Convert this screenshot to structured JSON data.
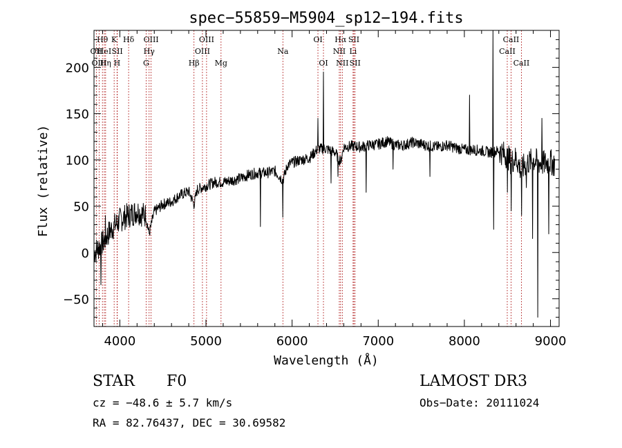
{
  "chart_data": {
    "type": "line",
    "title": "spec−55859−M5904_sp12−194.fits",
    "xlabel": "Wavelength (Å)",
    "ylabel": "Flux (relative)",
    "xlim": [
      3700,
      9100
    ],
    "ylim": [
      -80,
      240
    ],
    "x_ticks": [
      4000,
      5000,
      6000,
      7000,
      8000,
      9000
    ],
    "x_tick_labels": [
      "4000",
      "5000",
      "6000",
      "7000",
      "8000",
      "9000"
    ],
    "y_ticks": [
      -50,
      0,
      50,
      100,
      150,
      200
    ],
    "y_tick_labels": [
      "−50",
      "0",
      "50",
      "100",
      "150",
      "200"
    ],
    "series": [
      {
        "name": "flux",
        "color": "#000000",
        "x": [
          3700,
          3750,
          3800,
          3850,
          3900,
          3950,
          4000,
          4050,
          4100,
          4150,
          4200,
          4250,
          4300,
          4340,
          4400,
          4500,
          4600,
          4700,
          4800,
          4861,
          4900,
          5000,
          5100,
          5200,
          5300,
          5400,
          5500,
          5600,
          5700,
          5800,
          5893,
          5950,
          6000,
          6100,
          6200,
          6300,
          6400,
          6500,
          6563,
          6600,
          6700,
          6800,
          6900,
          7000,
          7100,
          7200,
          7300,
          7400,
          7500,
          7600,
          7700,
          7800,
          7900,
          8000,
          8100,
          8200,
          8300,
          8400,
          8500,
          8542,
          8600,
          8662,
          8700,
          8800,
          8900,
          9000,
          9050
        ],
        "y": [
          0,
          5,
          10,
          18,
          25,
          30,
          35,
          38,
          40,
          42,
          45,
          42,
          40,
          20,
          44,
          52,
          55,
          62,
          66,
          52,
          68,
          72,
          76,
          76,
          78,
          80,
          84,
          86,
          86,
          88,
          78,
          95,
          97,
          100,
          102,
          112,
          112,
          108,
          98,
          114,
          115,
          114,
          116,
          117,
          120,
          116,
          116,
          119,
          117,
          115,
          114,
          116,
          113,
          111,
          111,
          110,
          108,
          110,
          104,
          98,
          102,
          88,
          95,
          100,
          96,
          98,
          95
        ]
      }
    ],
    "spikes": [
      {
        "x": 3780,
        "y": -35
      },
      {
        "x": 3830,
        "y": 40
      },
      {
        "x": 5630,
        "y": 28
      },
      {
        "x": 5893,
        "y": 38
      },
      {
        "x": 6300,
        "y": 145
      },
      {
        "x": 6364,
        "y": 195
      },
      {
        "x": 6450,
        "y": 75
      },
      {
        "x": 6530,
        "y": 82
      },
      {
        "x": 6860,
        "y": 65
      },
      {
        "x": 7170,
        "y": 90
      },
      {
        "x": 7600,
        "y": 82
      },
      {
        "x": 8060,
        "y": 170
      },
      {
        "x": 8330,
        "y": 240
      },
      {
        "x": 8340,
        "y": 25
      },
      {
        "x": 8500,
        "y": 65
      },
      {
        "x": 8542,
        "y": 45
      },
      {
        "x": 8662,
        "y": 40
      },
      {
        "x": 8720,
        "y": 70
      },
      {
        "x": 8790,
        "y": 15
      },
      {
        "x": 8850,
        "y": -70
      },
      {
        "x": 8900,
        "y": 145
      },
      {
        "x": 8980,
        "y": 20
      }
    ],
    "lines": [
      {
        "label": "Hθ",
        "x": 3798,
        "row": 0
      },
      {
        "label": "OII",
        "x": 3727,
        "row": 1
      },
      {
        "label": "OIII",
        "x": 3760,
        "row": 2
      },
      {
        "label": "HeI",
        "x": 3820,
        "row": 1
      },
      {
        "label": "Hη",
        "x": 3835,
        "row": 2
      },
      {
        "label": "K",
        "x": 3934,
        "row": 0
      },
      {
        "label": "SII",
        "x": 3970,
        "row": 1
      },
      {
        "label": "H",
        "x": 3968,
        "row": 2
      },
      {
        "label": "Hδ",
        "x": 4102,
        "row": 0
      },
      {
        "label": "OIII",
        "x": 4363,
        "row": 0
      },
      {
        "label": "Hγ",
        "x": 4340,
        "row": 1
      },
      {
        "label": "G",
        "x": 4305,
        "row": 2
      },
      {
        "label": "Hβ",
        "x": 4861,
        "row": 2
      },
      {
        "label": "OIII",
        "x": 5007,
        "row": 0
      },
      {
        "label": "OIII",
        "x": 4959,
        "row": 1
      },
      {
        "label": "Mg",
        "x": 5175,
        "row": 2
      },
      {
        "label": "Na",
        "x": 5893,
        "row": 1
      },
      {
        "label": "OI",
        "x": 6300,
        "row": 0
      },
      {
        "label": "OI",
        "x": 6364,
        "row": 2
      },
      {
        "label": "Hα",
        "x": 6563,
        "row": 0
      },
      {
        "label": "NII",
        "x": 6548,
        "row": 1
      },
      {
        "label": "NII",
        "x": 6583,
        "row": 2
      },
      {
        "label": "SII",
        "x": 6717,
        "row": 0
      },
      {
        "label": "Li",
        "x": 6708,
        "row": 1
      },
      {
        "label": "SII",
        "x": 6731,
        "row": 2
      },
      {
        "label": "CaII",
        "x": 8542,
        "row": 0
      },
      {
        "label": "CaII",
        "x": 8498,
        "row": 1
      },
      {
        "label": "CaII",
        "x": 8662,
        "row": 2
      }
    ],
    "line_color": "#b22222"
  },
  "info": {
    "object_class": "STAR",
    "subclass": "F0",
    "survey": "LAMOST DR3",
    "cz": "cz = −48.6 ± 5.7 km/s",
    "obs_date": "Obs−Date: 20111024",
    "coords": "RA =  82.76437, DEC =  30.69582"
  }
}
